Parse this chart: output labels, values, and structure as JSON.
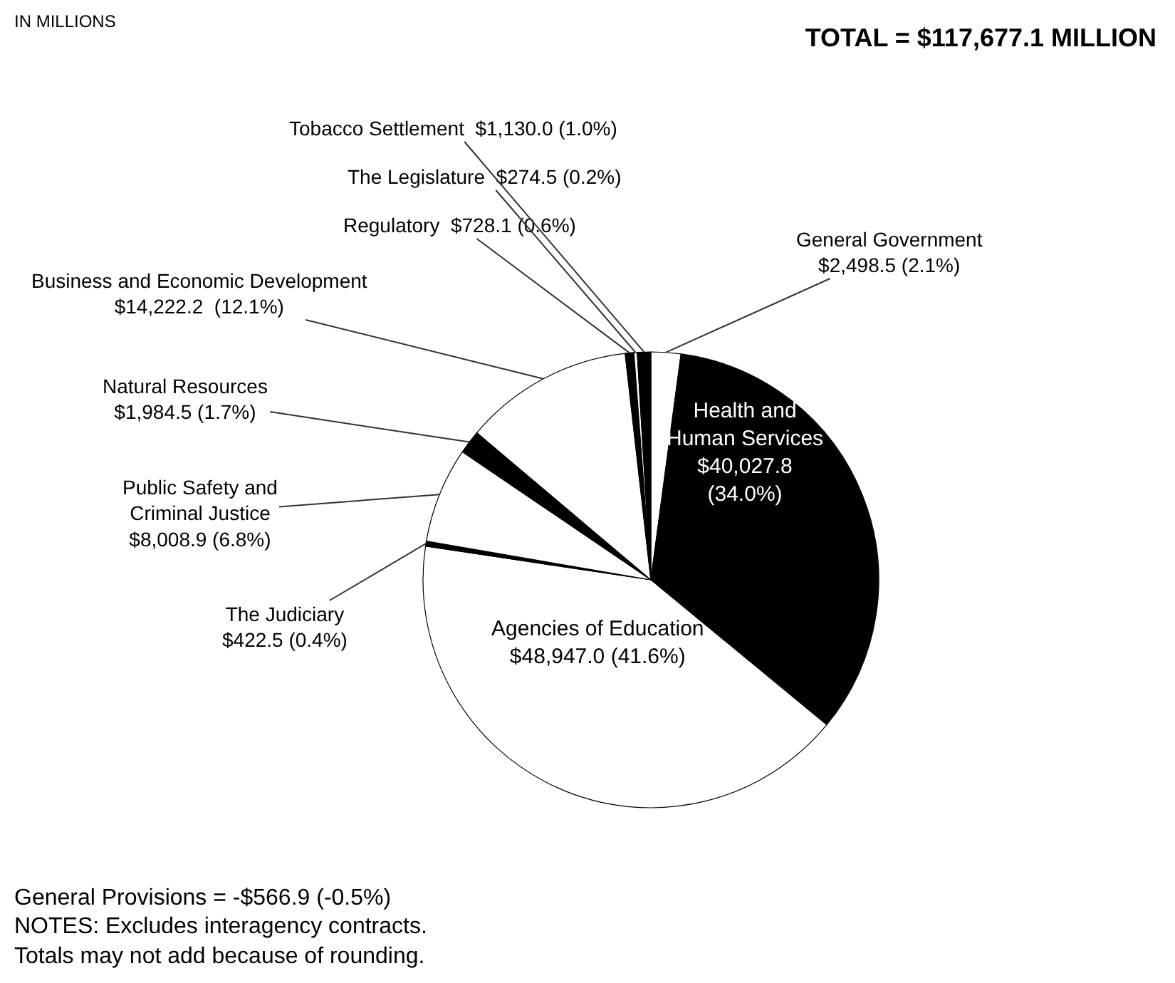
{
  "chart_data": {
    "type": "pie",
    "title": "TOTAL = $117,677.1 MILLION",
    "categories": [
      "General Government",
      "Health and\nHuman Services",
      "Agencies of Education",
      "The Judiciary",
      "Public Safety and\nCriminal Justice",
      "Natural Resources",
      "Business and Economic Development",
      "Regulatory",
      "The Legislature",
      "Tobacco Settlement"
    ],
    "values": [
      2498.5,
      40027.8,
      48947.0,
      422.5,
      8008.9,
      1984.5,
      14222.2,
      728.1,
      274.5,
      1130.0
    ],
    "value_labels": [
      "$2,498.5 (2.1%)",
      "$40,027.8\n(34.0%)",
      "$48,947.0 (41.6%)",
      "$422.5 (0.4%)",
      "$8,008.9 (6.8%)",
      "$1,984.5 (1.7%)",
      "$14,222.2  (12.1%)",
      "$728.1 (0.6%)",
      "$274.5 (0.2%)",
      "$1,130.0 (1.0%)"
    ],
    "colors": [
      "#ffffff",
      "#000000",
      "#ffffff",
      "#000000",
      "#ffffff",
      "#000000",
      "#ffffff",
      "#000000",
      "#ffffff",
      "#000000"
    ],
    "legend": false,
    "annotations": [
      "IN MILLIONS",
      "General Provisions = -$566.9 (-0.5%)",
      "NOTES: Excludes interagency contracts.\nTotals may not add because of rounding."
    ]
  }
}
